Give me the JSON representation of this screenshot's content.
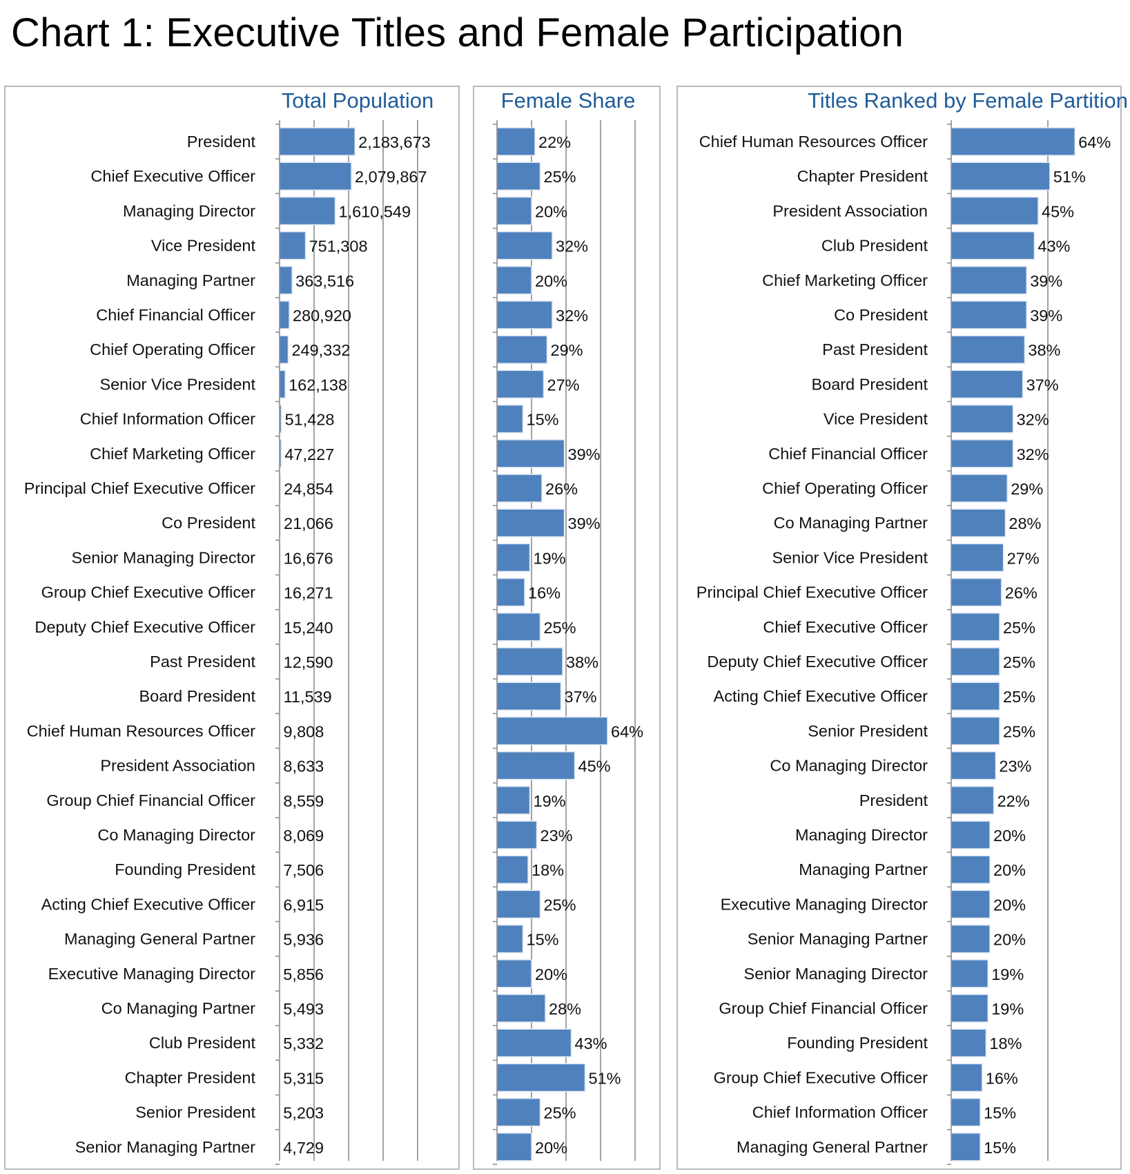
{
  "title": "Chart 1: Executive Titles and Female Participation",
  "colors": {
    "bar": "#4f81bd",
    "panel_title": "#1f5c99",
    "grid": "#8c8c8c",
    "panel_border": "#b9b9b9"
  },
  "chart_data": [
    {
      "type": "bar",
      "orientation": "horizontal",
      "title": "Total Population",
      "grid": true,
      "xlim": [
        0,
        4000000
      ],
      "categories": [
        "President",
        "Chief Executive Officer",
        "Managing Director",
        "Vice President",
        "Managing Partner",
        "Chief Financial Officer",
        "Chief Operating Officer",
        "Senior Vice President",
        "Chief Information Officer",
        "Chief Marketing Officer",
        "Principal Chief Executive Officer",
        "Co President",
        "Senior Managing Director",
        "Group Chief Executive Officer",
        "Deputy Chief Executive Officer",
        "Past President",
        "Board President",
        "Chief Human Resources Officer",
        "President Association",
        "Group Chief Financial Officer",
        "Co Managing Director",
        "Founding President",
        "Acting Chief Executive Officer",
        "Managing General Partner",
        "Executive Managing Director",
        "Co Managing Partner",
        "Club President",
        "Chapter President",
        "Senior President",
        "Senior Managing Partner"
      ],
      "values": [
        2183673,
        2079867,
        1610549,
        751308,
        363516,
        280920,
        249332,
        162138,
        51428,
        47227,
        24854,
        21066,
        16676,
        16271,
        15240,
        12590,
        11539,
        9808,
        8633,
        8559,
        8069,
        7506,
        6915,
        5936,
        5856,
        5493,
        5332,
        5315,
        5203,
        4729
      ],
      "labels": [
        "2,183,673",
        "2,079,867",
        "1,610,549",
        "751,308",
        "363,516",
        "280,920",
        "249,332",
        "162,138",
        "51,428",
        "47,227",
        "24,854",
        "21,066",
        "16,676",
        "16,271",
        "15,240",
        "12,590",
        "11,539",
        "9,808",
        "8,633",
        "8,559",
        "8,069",
        "7,506",
        "6,915",
        "5,936",
        "5,856",
        "5,493",
        "5,332",
        "5,315",
        "5,203",
        "4,729"
      ]
    },
    {
      "type": "bar",
      "orientation": "horizontal",
      "title": "Female Share",
      "grid": true,
      "xlim": [
        0,
        0.8
      ],
      "categories": [
        "President",
        "Chief Executive Officer",
        "Managing Director",
        "Vice President",
        "Managing Partner",
        "Chief Financial Officer",
        "Chief Operating Officer",
        "Senior Vice President",
        "Chief Information Officer",
        "Chief Marketing Officer",
        "Principal Chief Executive Officer",
        "Co President",
        "Senior Managing Director",
        "Group Chief Executive Officer",
        "Deputy Chief Executive Officer",
        "Past President",
        "Board President",
        "Chief Human Resources Officer",
        "President Association",
        "Group Chief Financial Officer",
        "Co Managing Director",
        "Founding President",
        "Acting Chief Executive Officer",
        "Managing General Partner",
        "Executive Managing Director",
        "Co Managing Partner",
        "Club President",
        "Chapter President",
        "Senior President",
        "Senior Managing Partner"
      ],
      "values": [
        0.22,
        0.25,
        0.2,
        0.32,
        0.2,
        0.32,
        0.29,
        0.27,
        0.15,
        0.39,
        0.26,
        0.39,
        0.19,
        0.16,
        0.25,
        0.38,
        0.37,
        0.64,
        0.45,
        0.19,
        0.23,
        0.18,
        0.25,
        0.15,
        0.2,
        0.28,
        0.43,
        0.51,
        0.25,
        0.2
      ],
      "labels": [
        "22%",
        "25%",
        "20%",
        "32%",
        "20%",
        "32%",
        "29%",
        "27%",
        "15%",
        "39%",
        "26%",
        "39%",
        "19%",
        "16%",
        "25%",
        "38%",
        "37%",
        "64%",
        "45%",
        "19%",
        "23%",
        "18%",
        "25%",
        "15%",
        "20%",
        "28%",
        "43%",
        "51%",
        "25%",
        "20%"
      ]
    },
    {
      "type": "bar",
      "orientation": "horizontal",
      "title": "Titles Ranked by Female Partition",
      "grid": true,
      "xlim": [
        0,
        1.0
      ],
      "categories": [
        "Chief Human Resources Officer",
        "Chapter President",
        "President Association",
        "Club President",
        "Chief Marketing Officer",
        "Co President",
        "Past President",
        "Board President",
        "Vice President",
        "Chief Financial Officer",
        "Chief Operating Officer",
        "Co Managing Partner",
        "Senior Vice President",
        "Principal Chief Executive Officer",
        "Chief Executive Officer",
        "Deputy Chief Executive Officer",
        "Acting Chief Executive Officer",
        "Senior President",
        "Co Managing Director",
        "President",
        "Managing Director",
        "Managing Partner",
        "Executive Managing Director",
        "Senior Managing Partner",
        "Senior Managing Director",
        "Group Chief Financial Officer",
        "Founding President",
        "Group Chief Executive Officer",
        "Chief Information Officer",
        "Managing General Partner"
      ],
      "values": [
        0.64,
        0.51,
        0.45,
        0.43,
        0.39,
        0.39,
        0.38,
        0.37,
        0.32,
        0.32,
        0.29,
        0.28,
        0.27,
        0.26,
        0.25,
        0.25,
        0.25,
        0.25,
        0.23,
        0.22,
        0.2,
        0.2,
        0.2,
        0.2,
        0.19,
        0.19,
        0.18,
        0.16,
        0.15,
        0.15
      ],
      "labels": [
        "64%",
        "51%",
        "45%",
        "43%",
        "39%",
        "39%",
        "38%",
        "37%",
        "32%",
        "32%",
        "29%",
        "28%",
        "27%",
        "26%",
        "25%",
        "25%",
        "25%",
        "25%",
        "23%",
        "22%",
        "20%",
        "20%",
        "20%",
        "20%",
        "19%",
        "19%",
        "18%",
        "16%",
        "15%",
        "15%"
      ]
    }
  ]
}
